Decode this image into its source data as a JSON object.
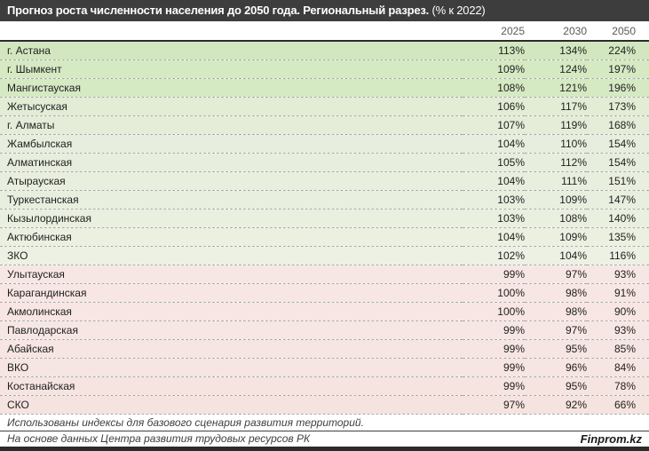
{
  "title": {
    "bold": "Прогноз роста численности населения до 2050 года. Региональный разрез.",
    "normal": " (% к 2022)"
  },
  "table": {
    "columns": [
      "2025",
      "2030",
      "2050"
    ],
    "rows": [
      {
        "region": "г. Астана",
        "values": [
          "113%",
          "134%",
          "224%"
        ],
        "color": "#d2e7bf"
      },
      {
        "region": "г. Шымкент",
        "values": [
          "109%",
          "124%",
          "197%"
        ],
        "color": "#d5e9c3"
      },
      {
        "region": "Мангистауская",
        "values": [
          "108%",
          "121%",
          "196%"
        ],
        "color": "#d5e9c3"
      },
      {
        "region": "Жетысуская",
        "values": [
          "106%",
          "117%",
          "173%"
        ],
        "color": "#e3ecd5"
      },
      {
        "region": "г. Алматы",
        "values": [
          "107%",
          "119%",
          "168%"
        ],
        "color": "#e5edd8"
      },
      {
        "region": "Жамбылская",
        "values": [
          "104%",
          "110%",
          "154%"
        ],
        "color": "#e8eedd"
      },
      {
        "region": "Алматинская",
        "values": [
          "105%",
          "112%",
          "154%"
        ],
        "color": "#e8eedd"
      },
      {
        "region": "Атырауская",
        "values": [
          "104%",
          "111%",
          "151%"
        ],
        "color": "#e9efde"
      },
      {
        "region": "Туркестанская",
        "values": [
          "103%",
          "109%",
          "147%"
        ],
        "color": "#e9efdf"
      },
      {
        "region": "Кызылординская",
        "values": [
          "103%",
          "108%",
          "140%"
        ],
        "color": "#eaf0e0"
      },
      {
        "region": "Актюбинская",
        "values": [
          "104%",
          "109%",
          "135%"
        ],
        "color": "#ebf0e1"
      },
      {
        "region": "ЗКО",
        "values": [
          "102%",
          "104%",
          "116%"
        ],
        "color": "#edf1e4"
      },
      {
        "region": "Улытауская",
        "values": [
          "99%",
          "97%",
          "93%"
        ],
        "color": "#f7e7e4"
      },
      {
        "region": "Карагандинская",
        "values": [
          "100%",
          "98%",
          "91%"
        ],
        "color": "#f7e6e3"
      },
      {
        "region": "Акмолинская",
        "values": [
          "100%",
          "98%",
          "90%"
        ],
        "color": "#f7e6e3"
      },
      {
        "region": "Павлодарская",
        "values": [
          "99%",
          "97%",
          "93%"
        ],
        "color": "#f7e7e4"
      },
      {
        "region": "Абайская",
        "values": [
          "99%",
          "95%",
          "85%"
        ],
        "color": "#f6e5e2"
      },
      {
        "region": "ВКО",
        "values": [
          "99%",
          "96%",
          "84%"
        ],
        "color": "#f6e5e2"
      },
      {
        "region": "Костанайская",
        "values": [
          "99%",
          "95%",
          "78%"
        ],
        "color": "#f6e4e1"
      },
      {
        "region": "СКО",
        "values": [
          "97%",
          "92%",
          "66%"
        ],
        "color": "#f5e3e0"
      }
    ]
  },
  "footnote": "Использованы индексы для базового сценария развития территорий.",
  "source": "На основе данных Центра развития трудовых ресурсов РК",
  "brand": "Finprom.kz",
  "colors": {
    "title_bar": "#3d3d3d",
    "header_text": "#595959",
    "positive_green_max": "#d2e7bf",
    "positive_green_min": "#edf1e4",
    "negative_pink": "#f7e6e3",
    "bottom_bar": "#2b2b2b"
  },
  "chart_data": {
    "type": "table",
    "title": "Прогноз роста численности населения до 2050 года. Региональный разрез. (% к 2022)",
    "columns": [
      "2025",
      "2030",
      "2050"
    ],
    "unit": "% к 2022",
    "rows": [
      {
        "region": "г. Астана",
        "y2025": 113,
        "y2030": 134,
        "y2050": 224
      },
      {
        "region": "г. Шымкент",
        "y2025": 109,
        "y2030": 124,
        "y2050": 197
      },
      {
        "region": "Мангистауская",
        "y2025": 108,
        "y2030": 121,
        "y2050": 196
      },
      {
        "region": "Жетысуская",
        "y2025": 106,
        "y2030": 117,
        "y2050": 173
      },
      {
        "region": "г. Алматы",
        "y2025": 107,
        "y2030": 119,
        "y2050": 168
      },
      {
        "region": "Жамбылская",
        "y2025": 104,
        "y2030": 110,
        "y2050": 154
      },
      {
        "region": "Алматинская",
        "y2025": 105,
        "y2030": 112,
        "y2050": 154
      },
      {
        "region": "Атырауская",
        "y2025": 104,
        "y2030": 111,
        "y2050": 151
      },
      {
        "region": "Туркестанская",
        "y2025": 103,
        "y2030": 109,
        "y2050": 147
      },
      {
        "region": "Кызылординская",
        "y2025": 103,
        "y2030": 108,
        "y2050": 140
      },
      {
        "region": "Актюбинская",
        "y2025": 104,
        "y2030": 109,
        "y2050": 135
      },
      {
        "region": "ЗКО",
        "y2025": 102,
        "y2030": 104,
        "y2050": 116
      },
      {
        "region": "Улытауская",
        "y2025": 99,
        "y2030": 97,
        "y2050": 93
      },
      {
        "region": "Карагандинская",
        "y2025": 100,
        "y2030": 98,
        "y2050": 91
      },
      {
        "region": "Акмолинская",
        "y2025": 100,
        "y2030": 98,
        "y2050": 90
      },
      {
        "region": "Павлодарская",
        "y2025": 99,
        "y2030": 97,
        "y2050": 93
      },
      {
        "region": "Абайская",
        "y2025": 99,
        "y2030": 95,
        "y2050": 85
      },
      {
        "region": "ВКО",
        "y2025": 99,
        "y2030": 96,
        "y2050": 84
      },
      {
        "region": "Костанайская",
        "y2025": 99,
        "y2030": 95,
        "y2050": 78
      },
      {
        "region": "СКО",
        "y2025": 97,
        "y2030": 92,
        "y2050": 66
      }
    ]
  }
}
